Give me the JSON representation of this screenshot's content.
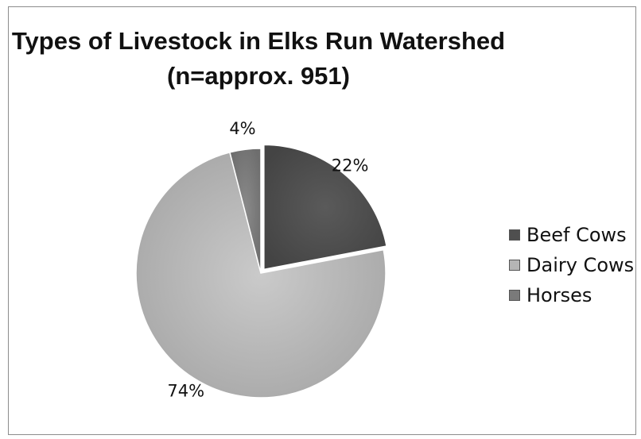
{
  "chart_data": {
    "type": "pie",
    "title": "Types of Livestock in Elks Run Watershed",
    "subtitle": "(n=approx. 951)",
    "categories": [
      "Beef Cows",
      "Dairy Cows",
      "Horses"
    ],
    "values": [
      22,
      74,
      4
    ],
    "data_labels": [
      "22%",
      "74%",
      "4%"
    ],
    "colors": [
      "#4f4f4f",
      "#b5b5b5",
      "#7a7a7a"
    ],
    "legend_position": "right"
  }
}
